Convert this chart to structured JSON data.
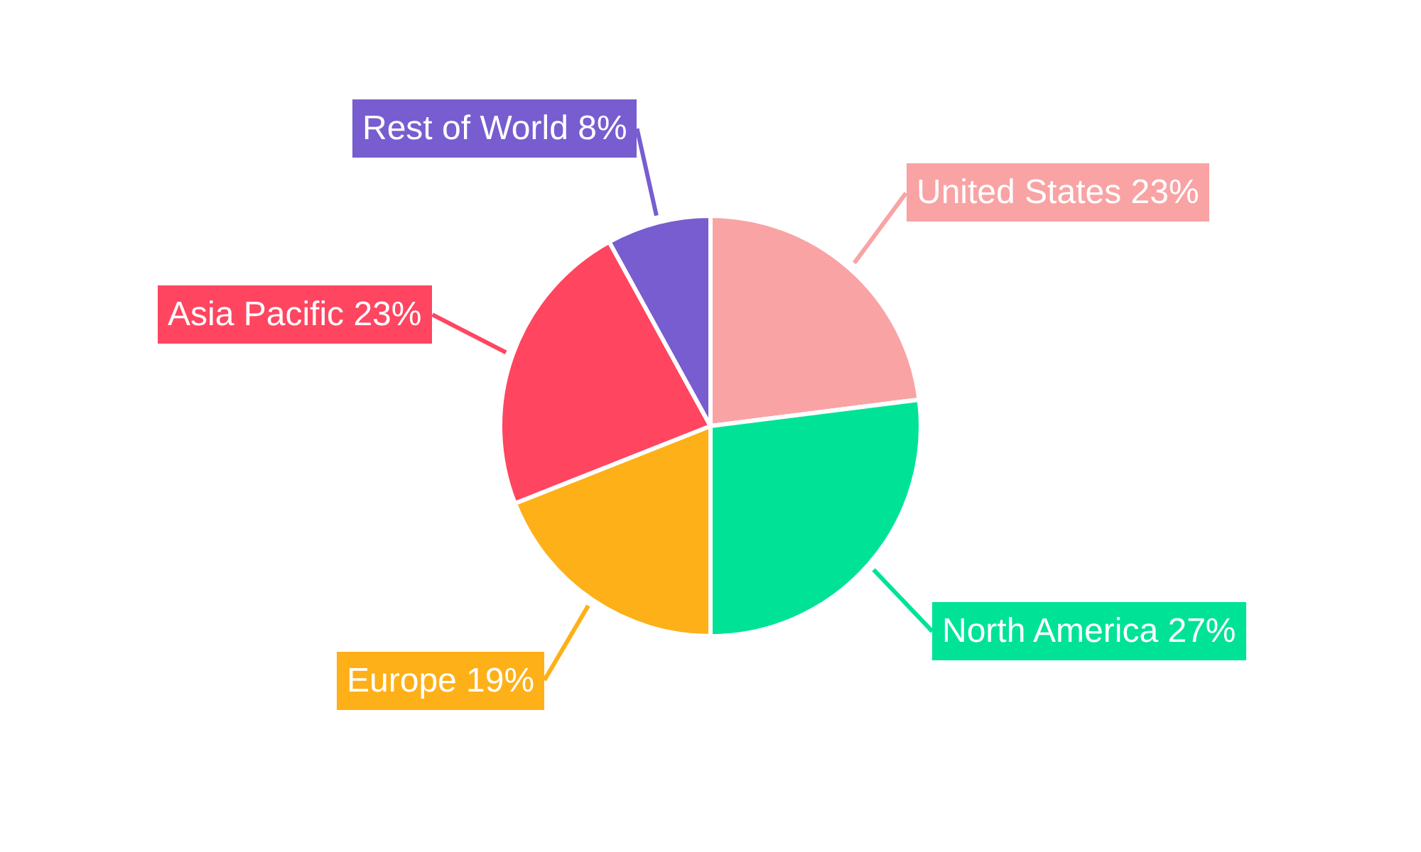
{
  "chart_data": {
    "type": "pie",
    "categories": [
      "United States",
      "North America",
      "Europe",
      "Asia Pacific",
      "Rest of World"
    ],
    "values": [
      23,
      27,
      19,
      23,
      8
    ],
    "colors": [
      "#f9a3a4",
      "#00e396",
      "#feb019",
      "#ff4560",
      "#775dd0"
    ],
    "value_labels": [
      "23%",
      "27%",
      "19%",
      "23%",
      "8%"
    ]
  }
}
